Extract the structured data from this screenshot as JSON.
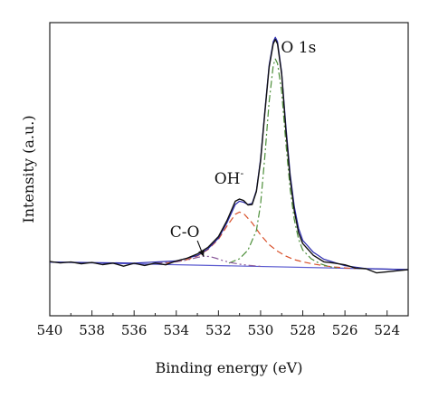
{
  "chart_data": {
    "type": "line",
    "xlabel": "Binding energy (eV)",
    "ylabel": "Intensity (a.u.)",
    "xlim": [
      540,
      523
    ],
    "x_reversed": true,
    "x_ticks": [
      540,
      538,
      536,
      534,
      532,
      530,
      528,
      526,
      524
    ],
    "y_ticks_shown": false,
    "ylim": [
      0,
      1.12
    ],
    "grid": false,
    "legend": "none",
    "annotations": [
      {
        "text": "O 1s",
        "x": 528.2,
        "y": 1.0
      },
      {
        "text": "OH",
        "sup": "-",
        "x": 531.5,
        "y": 0.395
      },
      {
        "text": "C-O",
        "x": 533.6,
        "y": 0.15,
        "arrow_to_x": 532.7,
        "arrow_to_y": 0.06
      }
    ],
    "series": [
      {
        "role": "measured",
        "color": "#111111",
        "x": [
          540,
          539.5,
          539,
          538.5,
          538,
          537.5,
          537,
          536.5,
          536,
          535.5,
          535,
          534.5,
          534,
          533.5,
          533,
          532.5,
          532,
          531.6,
          531.2,
          531.0,
          530.8,
          530.6,
          530.4,
          530.2,
          530.0,
          529.8,
          529.6,
          529.4,
          529.3,
          529.2,
          529.0,
          528.8,
          528.6,
          528.4,
          528.2,
          528,
          527.5,
          527,
          526.5,
          526,
          525.5,
          525,
          524.5,
          524,
          523.5,
          523
        ],
        "y": [
          0.037,
          0.031,
          0.035,
          0.027,
          0.033,
          0.023,
          0.03,
          0.016,
          0.029,
          0.019,
          0.03,
          0.022,
          0.04,
          0.052,
          0.072,
          0.102,
          0.152,
          0.225,
          0.315,
          0.325,
          0.318,
          0.298,
          0.3,
          0.36,
          0.5,
          0.72,
          0.93,
          1.04,
          1.06,
          1.04,
          0.9,
          0.64,
          0.42,
          0.27,
          0.17,
          0.12,
          0.066,
          0.036,
          0.03,
          0.022,
          0.007,
          0.004,
          -0.015,
          -0.01,
          -0.005,
          0.0
        ]
      },
      {
        "role": "fitted envelope",
        "color": "#2b2bb0",
        "x": [
          540,
          536,
          534,
          533,
          532.5,
          532,
          531.6,
          531.2,
          531.0,
          530.8,
          530.6,
          530.4,
          530.2,
          530.0,
          529.8,
          529.6,
          529.4,
          529.3,
          529.2,
          529.0,
          528.8,
          528.6,
          528.4,
          528.2,
          528,
          527.5,
          527,
          526,
          525,
          523
        ],
        "y": [
          0.035,
          0.03,
          0.04,
          0.065,
          0.095,
          0.145,
          0.215,
          0.3,
          0.315,
          0.31,
          0.3,
          0.305,
          0.365,
          0.51,
          0.73,
          0.94,
          1.05,
          1.07,
          1.05,
          0.91,
          0.66,
          0.44,
          0.29,
          0.19,
          0.135,
          0.08,
          0.048,
          0.018,
          0.005,
          0.0
        ]
      },
      {
        "role": "baseline",
        "color": "#5b5bd0",
        "x": [
          540,
          523
        ],
        "y": [
          0.035,
          0.0
        ]
      },
      {
        "role": "component O 1s",
        "color": "#4d8f3a",
        "dash": "dash-dot",
        "x": [
          531.5,
          531.0,
          530.6,
          530.2,
          530.0,
          529.8,
          529.6,
          529.4,
          529.3,
          529.2,
          529.0,
          528.8,
          528.6,
          528.4,
          528.2,
          528.0,
          527.6,
          527.2,
          526.8,
          526.4
        ],
        "y": [
          0.03,
          0.05,
          0.09,
          0.18,
          0.3,
          0.52,
          0.77,
          0.94,
          0.97,
          0.95,
          0.82,
          0.58,
          0.37,
          0.23,
          0.14,
          0.09,
          0.05,
          0.028,
          0.015,
          0.008
        ]
      },
      {
        "role": "component OH-",
        "color": "#d8502a",
        "dash": "dashed",
        "x": [
          534.5,
          534,
          533.5,
          533,
          532.5,
          532,
          531.6,
          531.2,
          531.0,
          530.8,
          530.4,
          530.0,
          529.6,
          529.2,
          528.8,
          528.4,
          528,
          527.5,
          527,
          526.5,
          526,
          525.5
        ],
        "y": [
          0.03,
          0.036,
          0.046,
          0.063,
          0.092,
          0.14,
          0.2,
          0.255,
          0.265,
          0.258,
          0.215,
          0.16,
          0.115,
          0.085,
          0.062,
          0.046,
          0.036,
          0.026,
          0.018,
          0.012,
          0.008,
          0.005
        ]
      },
      {
        "role": "component C-O",
        "color": "#8a5a9a",
        "dash": "dash-dot-dot",
        "x": [
          535,
          534.5,
          534,
          533.5,
          533,
          532.7,
          532.4,
          532.1,
          531.8,
          531.4,
          531,
          530.5,
          530
        ],
        "y": [
          0.03,
          0.032,
          0.036,
          0.044,
          0.056,
          0.062,
          0.06,
          0.052,
          0.042,
          0.032,
          0.025,
          0.019,
          0.015
        ]
      }
    ]
  }
}
